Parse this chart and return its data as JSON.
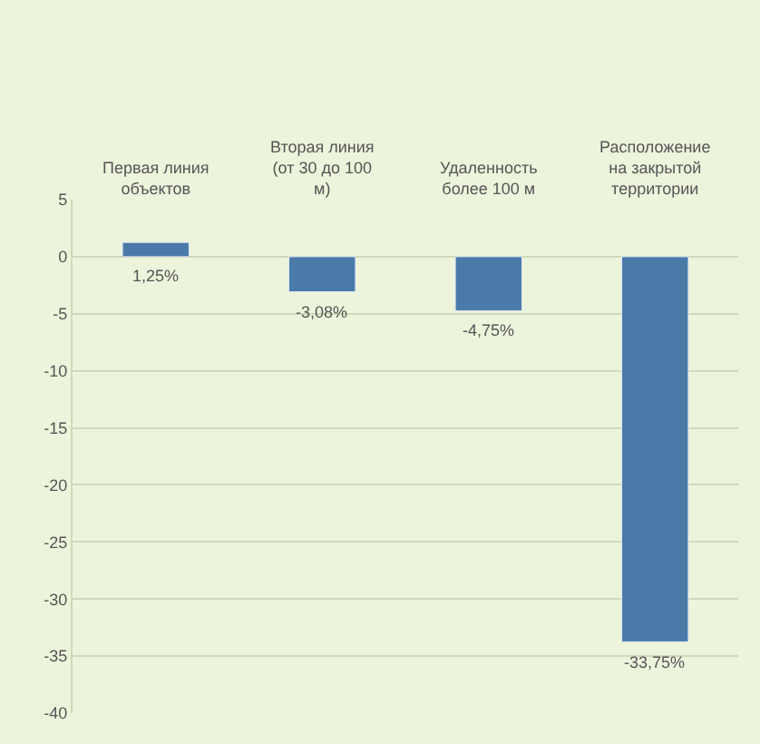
{
  "chart_data": {
    "type": "bar",
    "categories": [
      "Первая линия объектов",
      "Вторая линия (от 30 до 100 м)",
      "Удаленность более 100 м",
      "Расположение на закрытой территории"
    ],
    "values": [
      1.25,
      -3.08,
      -4.75,
      -33.75
    ],
    "value_labels": [
      "1,25%",
      "-3,08%",
      "-4,75%",
      "-33,75%"
    ],
    "color": "#4a7aa8",
    "ylim": [
      -40,
      5
    ],
    "yticks": [
      -40,
      -35,
      -30,
      -25,
      -20,
      -15,
      -10,
      -5,
      0,
      5
    ],
    "grid": "y"
  }
}
